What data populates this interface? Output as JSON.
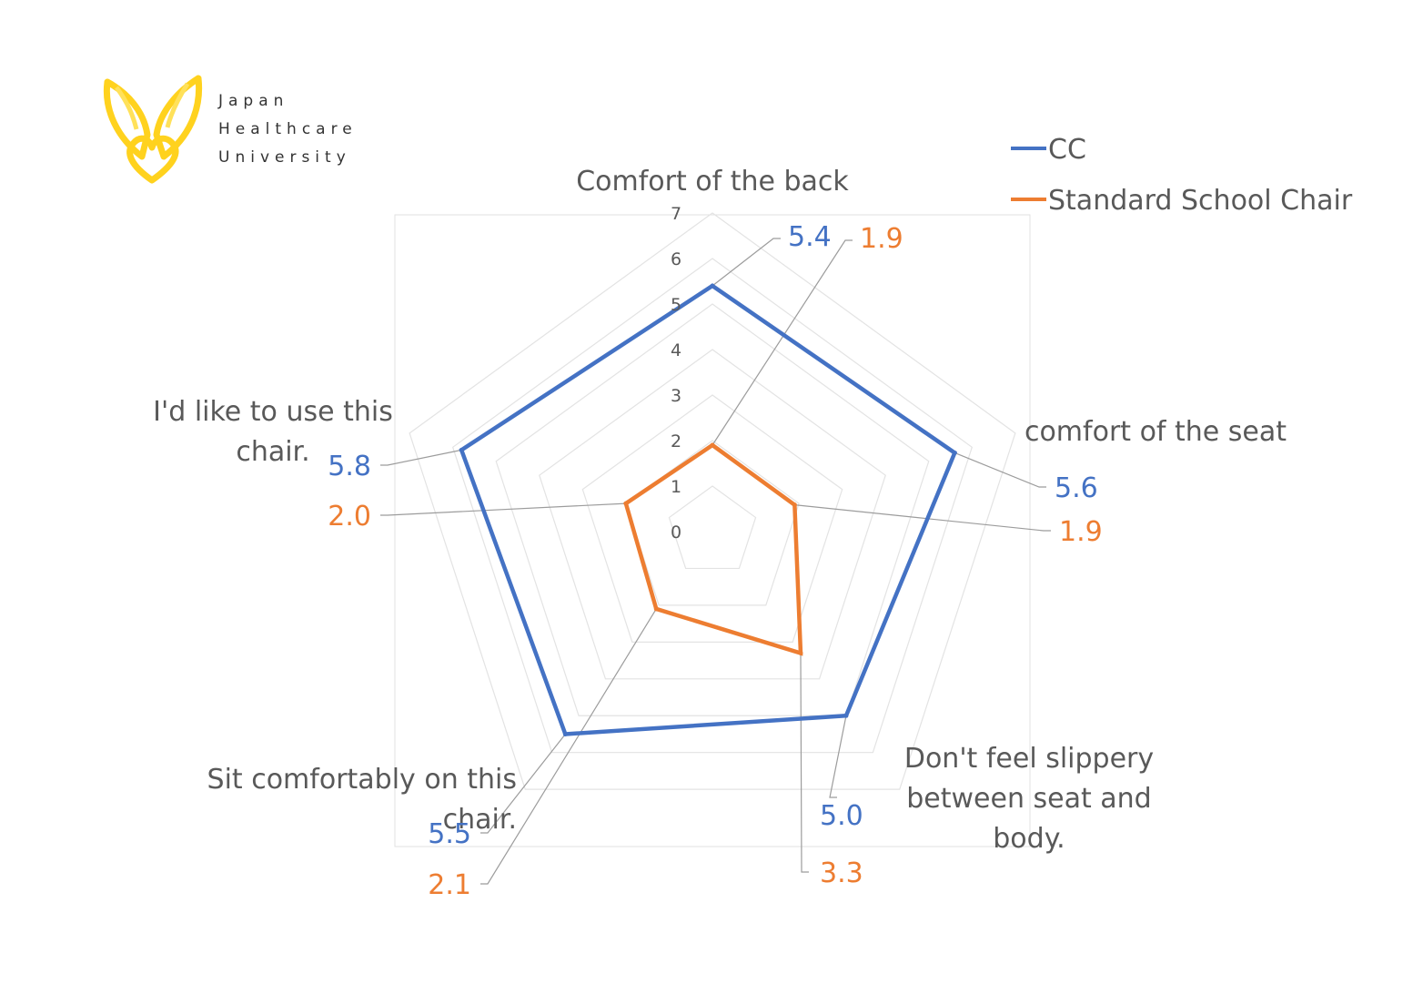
{
  "logo": {
    "lines": [
      "Japan",
      "Healthcare",
      "University"
    ],
    "color": "#FFD21E"
  },
  "chart_data": {
    "type": "radar",
    "title": "",
    "axes": [
      "Comfort of the back",
      "comfort of the seat",
      "Don't feel slippery between seat and body.",
      "Sit comfortably on this chair.",
      "I'd like to use this chair."
    ],
    "rlim": [
      0,
      7
    ],
    "ticks": [
      "0",
      "1",
      "2",
      "3",
      "4",
      "5",
      "6",
      "7"
    ],
    "grid": true,
    "legend_position": "top-right",
    "series": [
      {
        "name": "CC",
        "color": "#4472C4",
        "values": [
          5.4,
          5.6,
          5.0,
          5.5,
          5.8
        ],
        "labels": [
          "5.4",
          "5.6",
          "5.0",
          "5.5",
          "5.8"
        ]
      },
      {
        "name": "Standard School Chair",
        "color": "#ED7D31",
        "values": [
          1.9,
          1.9,
          3.3,
          2.1,
          2.0
        ],
        "labels": [
          "1.9",
          "1.9",
          "3.3",
          "2.1",
          "2.0"
        ]
      }
    ]
  }
}
